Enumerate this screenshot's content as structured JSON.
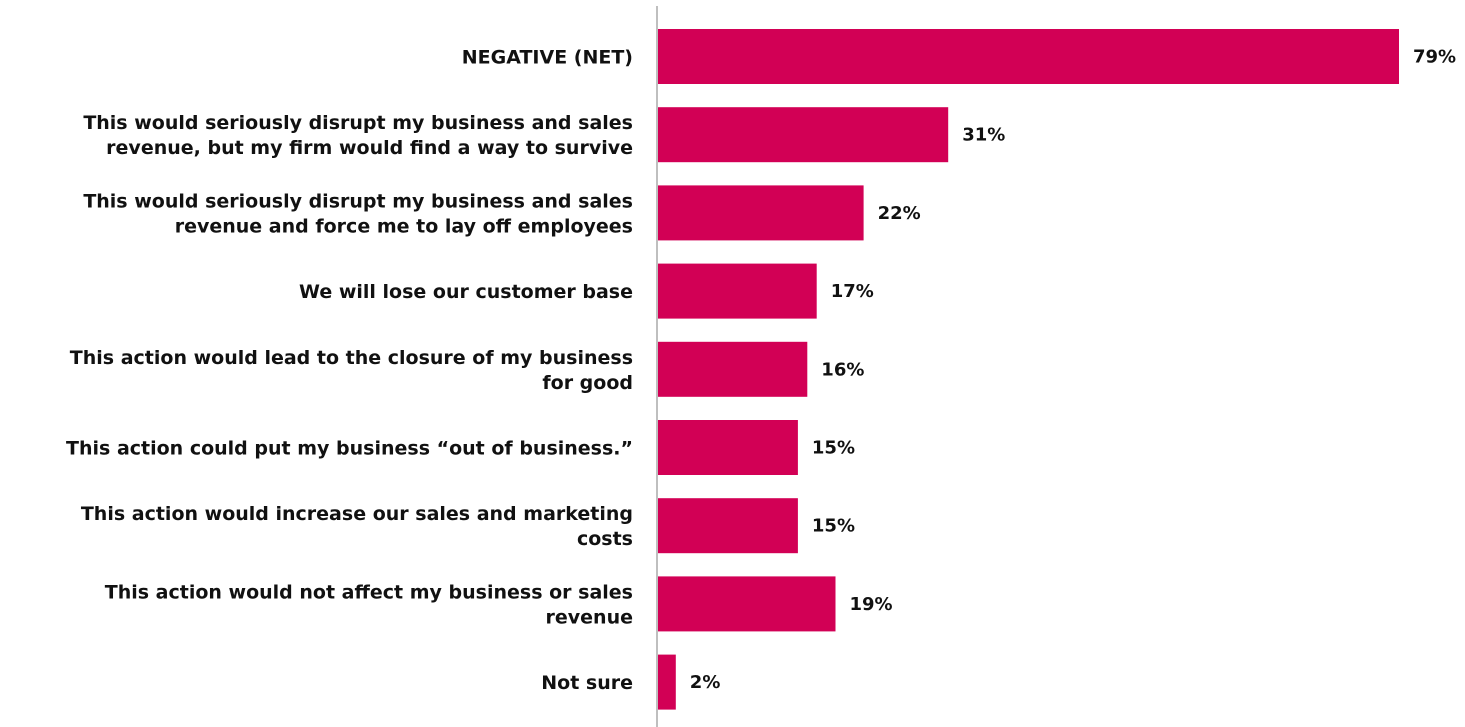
{
  "chart_data": {
    "type": "bar",
    "orientation": "horizontal",
    "categories": [
      [
        "NEGATIVE (NET)"
      ],
      [
        "This would seriously disrupt my business and sales",
        "revenue, but my firm would find a way to survive"
      ],
      [
        "This would seriously disrupt my business and sales",
        "revenue and force me to lay off employees"
      ],
      [
        "We will lose our customer base"
      ],
      [
        "This action would lead to the closure of my business",
        "for good"
      ],
      [
        "This action could put my business “out of business.”"
      ],
      [
        "This action would increase our sales and marketing",
        "costs"
      ],
      [
        "This action would not affect my business or sales",
        "revenue"
      ],
      [
        "Not sure"
      ]
    ],
    "values": [
      79,
      31,
      22,
      17,
      16,
      15,
      15,
      19,
      2
    ],
    "value_labels": [
      "79%",
      "31%",
      "22%",
      "17%",
      "16%",
      "15%",
      "15%",
      "19%",
      "2%"
    ],
    "bar_color": "#D20055",
    "axis_color": "#BFBFBF",
    "text_color": "#111111",
    "xlim": [
      0,
      79
    ],
    "grid": false,
    "legend": "none",
    "title": "",
    "xlabel": "",
    "ylabel": ""
  }
}
